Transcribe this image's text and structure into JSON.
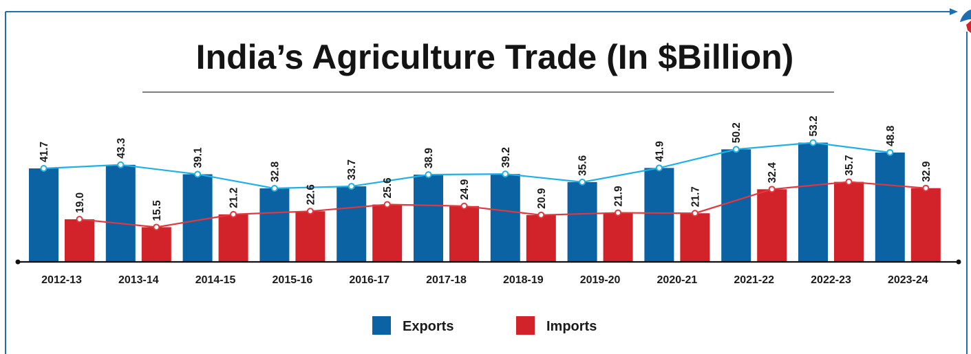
{
  "chart_data": {
    "type": "bar",
    "title": "India’s Agriculture Trade (In $Billion)",
    "categories": [
      "2012-13",
      "2013-14",
      "2014-15",
      "2015-16",
      "2016-17",
      "2017-18",
      "2018-19",
      "2019-20",
      "2020-21",
      "2021-22",
      "2022-23",
      "2023-24"
    ],
    "series": [
      {
        "name": "Exports",
        "values": [
          41.7,
          43.3,
          39.1,
          32.8,
          33.7,
          38.9,
          39.2,
          35.6,
          41.9,
          50.2,
          53.2,
          48.8
        ],
        "labels": [
          "41.7",
          "43.3",
          "39.1",
          "32.8",
          "33.7",
          "38.9",
          "39.2",
          "35.6",
          "41.9",
          "50.2",
          "53.2",
          "48.8"
        ],
        "color": "#0b63a3",
        "line_color": "#1fb0e6"
      },
      {
        "name": "Imports",
        "values": [
          19.0,
          15.5,
          21.2,
          22.6,
          25.6,
          24.9,
          20.9,
          21.9,
          21.7,
          32.4,
          35.7,
          32.9
        ],
        "labels": [
          "19.0",
          "15.5",
          "21.2",
          "22.6",
          "25.6",
          "24.9",
          "20.9",
          "21.9",
          "21.7",
          "32.4",
          "35.7",
          "32.9"
        ],
        "color": "#d2232a",
        "line_color": "#e0383e"
      }
    ],
    "overlay_lines": true,
    "data_labels": true,
    "grid": false,
    "legend_position": "bottom-center"
  },
  "colors": {
    "frame": "#1f6fb0",
    "axis": "#111111",
    "title_rule": "#333333"
  }
}
